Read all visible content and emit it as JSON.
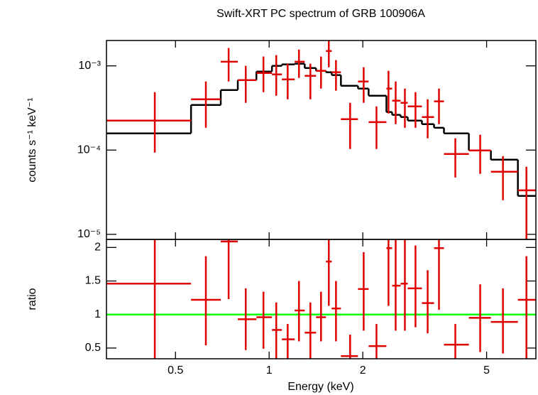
{
  "chart_data": [
    {
      "type": "scatter",
      "title": "Swift-XRT PC spectrum of GRB 100906A",
      "ylabel": "counts s⁻¹ keV⁻¹",
      "xlog": true,
      "ylog": true,
      "xlim": [
        0.3,
        7.2
      ],
      "ylim": [
        8.7e-06,
        0.002
      ],
      "xticks": [
        0.5,
        1,
        2,
        5
      ],
      "yticks": [
        {
          "value": 1e-05,
          "label": "10⁻⁵"
        },
        {
          "value": 0.0001,
          "label": "10⁻⁴"
        },
        {
          "value": 0.001,
          "label": "10⁻³"
        }
      ],
      "color": "#e00000",
      "model_color": "#000000",
      "x": [
        0.429,
        0.626,
        0.741,
        0.841,
        0.959,
        1.054,
        1.147,
        1.247,
        1.357,
        1.468,
        1.555,
        1.64,
        1.821,
        2.013,
        2.213,
        2.419,
        2.551,
        2.731,
        2.954,
        3.232,
        3.515,
        3.967,
        4.768,
        5.643,
        6.714
      ],
      "x_low": [
        0.3,
        0.561,
        0.699,
        0.793,
        0.91,
        1.021,
        1.099,
        1.208,
        1.301,
        1.415,
        1.523,
        1.589,
        1.701,
        1.93,
        2.088,
        2.382,
        2.485,
        2.646,
        2.789,
        3.098,
        3.389,
        3.647,
        4.384,
        5.161,
        6.302
      ],
      "x_high": [
        0.561,
        0.699,
        0.793,
        0.91,
        1.021,
        1.099,
        1.208,
        1.301,
        1.415,
        1.523,
        1.589,
        1.701,
        1.93,
        2.088,
        2.382,
        2.485,
        2.646,
        2.789,
        3.098,
        3.389,
        3.647,
        4.384,
        5.161,
        6.302,
        7.2
      ],
      "values": [
        0.000224,
        0.000401,
        0.00112,
        0.000678,
        0.000823,
        0.000792,
        0.000691,
        0.00112,
        0.000762,
        0.000873,
        0.0015,
        0.00084,
        0.000233,
        0.000652,
        0.000215,
        0.000537,
        0.000386,
        0.000364,
        0.00033,
        0.000247,
        0.000379,
        8.99e-05,
        9.9e-05,
        5.53e-05,
        3.33e-05
      ],
      "y_low": [
        9.34e-05,
        0.000184,
        0.000652,
        0.000364,
        0.000487,
        0.000442,
        0.000401,
        0.000719,
        0.000401,
        0.000537,
        0.000962,
        0.000507,
        0.000103,
        0.000364,
        0.000103,
        0.000272,
        0.000203,
        0.000184,
        0.000184,
        0.000138,
        0.000203,
        4.73e-05,
        5.22e-05,
        2.54e-05,
        8.7e-06
      ],
      "y_high": [
        0.000487,
        0.000652,
        0.00163,
        0.001,
        0.00129,
        0.00134,
        0.00106,
        0.00156,
        0.00106,
        0.00129,
        0.00201,
        0.00117,
        0.000364,
        0.000962,
        0.00033,
        0.000873,
        0.000652,
        0.000537,
        0.000487,
        0.000401,
        0.000537,
        0.000138,
        0.000152,
        8.48e-05,
        6.33e-05
      ],
      "model": [
        0.000158,
        0.000343,
        0.000516,
        0.000678,
        0.000856,
        0.001,
        0.00104,
        0.00106,
        0.000943,
        0.000873,
        0.00084,
        0.000777,
        0.00058,
        0.000537,
        0.000442,
        0.000283,
        0.000262,
        0.000247,
        0.000224,
        0.000203,
        0.000184,
        0.000158,
        9.9e-05,
        7.69e-05,
        2.86e-05
      ]
    },
    {
      "type": "scatter",
      "ylabel": "ratio",
      "xlabel": "Energy (keV)",
      "xlog": true,
      "xlim": [
        0.3,
        7.2
      ],
      "ylim": [
        0.34,
        2.12
      ],
      "xticks": [
        0.5,
        1,
        2,
        5
      ],
      "yticks": [
        0.5,
        1,
        1.5,
        2
      ],
      "color": "#e00000",
      "reference": 1,
      "reference_color": "#00ff00",
      "x": [
        0.429,
        0.626,
        0.741,
        0.841,
        0.959,
        1.054,
        1.147,
        1.247,
        1.357,
        1.468,
        1.555,
        1.64,
        1.821,
        2.013,
        2.213,
        2.419,
        2.551,
        2.731,
        2.954,
        3.232,
        3.515,
        3.967,
        4.768,
        5.643,
        6.714
      ],
      "x_low": [
        0.3,
        0.561,
        0.699,
        0.793,
        0.91,
        1.021,
        1.099,
        1.208,
        1.301,
        1.415,
        1.523,
        1.589,
        1.701,
        1.93,
        2.088,
        2.382,
        2.485,
        2.646,
        2.789,
        3.098,
        3.389,
        3.647,
        4.384,
        5.161,
        6.302
      ],
      "x_high": [
        0.561,
        0.699,
        0.793,
        0.91,
        1.021,
        1.099,
        1.208,
        1.301,
        1.415,
        1.523,
        1.589,
        1.701,
        1.93,
        2.088,
        2.382,
        2.485,
        2.646,
        2.789,
        3.098,
        3.389,
        3.647,
        4.384,
        5.161,
        6.302,
        7.2
      ],
      "values": [
        1.46,
        1.22,
        2.09,
        0.93,
        0.96,
        0.77,
        0.63,
        1.06,
        0.73,
        0.96,
        1.79,
        1.09,
        0.38,
        1.38,
        0.53,
        1.99,
        1.43,
        1.46,
        1.39,
        1.17,
        1.99,
        0.55,
        0.95,
        0.89,
        1.22
      ],
      "y_low": [
        0.3,
        0.54,
        1.23,
        0.47,
        0.49,
        0.3,
        0.3,
        0.6,
        0.3,
        0.6,
        1.13,
        0.6,
        0.3,
        0.76,
        0.3,
        1.13,
        0.76,
        0.76,
        0.81,
        0.72,
        1.07,
        0.3,
        0.44,
        0.42,
        0.3
      ],
      "y_high": [
        2.2,
        1.87,
        2.3,
        1.39,
        1.34,
        1.18,
        0.86,
        1.5,
        1.18,
        1.34,
        2.2,
        1.5,
        0.7,
        1.93,
        0.86,
        2.2,
        2.2,
        2.2,
        2.03,
        1.66,
        2.2,
        0.86,
        1.45,
        1.39,
        1.87
      ]
    }
  ]
}
